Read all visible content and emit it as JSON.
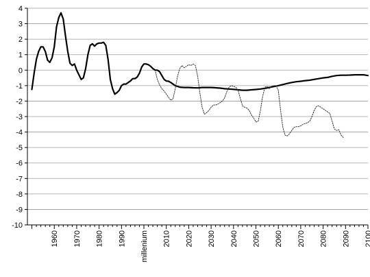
{
  "chart_data": {
    "type": "line",
    "title": "",
    "xlabel": "",
    "ylabel": "",
    "ylim": [
      -10,
      4
    ],
    "xlim": [
      1948,
      2100
    ],
    "grid": "horizontal",
    "legend": "none",
    "y_ticks": [
      "4",
      "3",
      "2",
      "1",
      "0",
      "-1",
      "-2",
      "-3",
      "-4",
      "-5",
      "-6",
      "-7",
      "-8",
      "-9",
      "-10"
    ],
    "x_ticks": [
      {
        "x": 1960,
        "label": "1960"
      },
      {
        "x": 1970,
        "label": "1970"
      },
      {
        "x": 1980,
        "label": "1980"
      },
      {
        "x": 1990,
        "label": "1990"
      },
      {
        "x": 2000,
        "label": "millenium"
      },
      {
        "x": 2010,
        "label": "2010"
      },
      {
        "x": 2020,
        "label": "2020"
      },
      {
        "x": 2030,
        "label": "2030"
      },
      {
        "x": 2040,
        "label": "2040"
      },
      {
        "x": 2050,
        "label": "2050"
      },
      {
        "x": 2060,
        "label": "2060"
      },
      {
        "x": 2070,
        "label": "2070"
      },
      {
        "x": 2080,
        "label": "2080"
      },
      {
        "x": 2090,
        "label": "2090"
      },
      {
        "x": 2100,
        "label": "2100"
      }
    ],
    "series": [
      {
        "style": "solid-thick",
        "color": "#000000",
        "points": [
          [
            1950,
            -1.25
          ],
          [
            1951,
            -0.2
          ],
          [
            1952,
            0.7
          ],
          [
            1953,
            1.2
          ],
          [
            1954,
            1.5
          ],
          [
            1955,
            1.5
          ],
          [
            1956,
            1.2
          ],
          [
            1957,
            0.65
          ],
          [
            1958,
            0.5
          ],
          [
            1959,
            0.8
          ],
          [
            1960,
            1.5
          ],
          [
            1961,
            2.8
          ],
          [
            1962,
            3.4
          ],
          [
            1963,
            3.7
          ],
          [
            1964,
            3.3
          ],
          [
            1965,
            2.2
          ],
          [
            1966,
            1.2
          ],
          [
            1967,
            0.45
          ],
          [
            1968,
            0.3
          ],
          [
            1969,
            0.4
          ],
          [
            1970,
            0.0
          ],
          [
            1971,
            -0.3
          ],
          [
            1972,
            -0.6
          ],
          [
            1973,
            -0.5
          ],
          [
            1974,
            0.1
          ],
          [
            1975,
            1.0
          ],
          [
            1976,
            1.6
          ],
          [
            1977,
            1.7
          ],
          [
            1978,
            1.55
          ],
          [
            1979,
            1.7
          ],
          [
            1980,
            1.75
          ],
          [
            1981,
            1.75
          ],
          [
            1982,
            1.8
          ],
          [
            1983,
            1.6
          ],
          [
            1984,
            0.7
          ],
          [
            1985,
            -0.6
          ],
          [
            1986,
            -1.2
          ],
          [
            1987,
            -1.55
          ],
          [
            1988,
            -1.45
          ],
          [
            1989,
            -1.3
          ],
          [
            1990,
            -1.0
          ],
          [
            1991,
            -0.9
          ],
          [
            1992,
            -0.9
          ],
          [
            1993,
            -0.8
          ],
          [
            1994,
            -0.7
          ],
          [
            1995,
            -0.55
          ],
          [
            1996,
            -0.55
          ],
          [
            1997,
            -0.45
          ],
          [
            1998,
            -0.2
          ],
          [
            1999,
            0.2
          ],
          [
            2000,
            0.4
          ],
          [
            2001,
            0.4
          ],
          [
            2002,
            0.35
          ],
          [
            2003,
            0.25
          ],
          [
            2004,
            0.1
          ],
          [
            2005,
            0.0
          ],
          [
            2006,
            0.0
          ],
          [
            2007,
            -0.1
          ],
          [
            2008,
            -0.35
          ],
          [
            2009,
            -0.6
          ],
          [
            2010,
            -0.7
          ],
          [
            2011,
            -0.72
          ],
          [
            2012,
            -0.8
          ],
          [
            2013,
            -0.9
          ],
          [
            2014,
            -1.0
          ],
          [
            2015,
            -1.05
          ],
          [
            2016,
            -1.1
          ],
          [
            2018,
            -1.12
          ],
          [
            2020,
            -1.12
          ],
          [
            2022,
            -1.14
          ],
          [
            2024,
            -1.15
          ],
          [
            2026,
            -1.12
          ],
          [
            2028,
            -1.12
          ],
          [
            2030,
            -1.12
          ],
          [
            2032,
            -1.14
          ],
          [
            2034,
            -1.16
          ],
          [
            2036,
            -1.2
          ],
          [
            2038,
            -1.22
          ],
          [
            2040,
            -1.24
          ],
          [
            2042,
            -1.27
          ],
          [
            2044,
            -1.3
          ],
          [
            2046,
            -1.3
          ],
          [
            2048,
            -1.27
          ],
          [
            2050,
            -1.25
          ],
          [
            2052,
            -1.22
          ],
          [
            2054,
            -1.18
          ],
          [
            2056,
            -1.12
          ],
          [
            2058,
            -1.06
          ],
          [
            2060,
            -1.0
          ],
          [
            2062,
            -0.93
          ],
          [
            2064,
            -0.86
          ],
          [
            2066,
            -0.8
          ],
          [
            2068,
            -0.75
          ],
          [
            2070,
            -0.72
          ],
          [
            2072,
            -0.68
          ],
          [
            2074,
            -0.65
          ],
          [
            2076,
            -0.6
          ],
          [
            2078,
            -0.55
          ],
          [
            2080,
            -0.5
          ],
          [
            2082,
            -0.47
          ],
          [
            2084,
            -0.4
          ],
          [
            2086,
            -0.35
          ],
          [
            2088,
            -0.33
          ],
          [
            2090,
            -0.33
          ],
          [
            2092,
            -0.32
          ],
          [
            2094,
            -0.3
          ],
          [
            2096,
            -0.3
          ],
          [
            2098,
            -0.3
          ],
          [
            2100,
            -0.35
          ]
        ]
      },
      {
        "style": "dotted-thin",
        "color": "#333333",
        "points": [
          [
            2005,
            0.0
          ],
          [
            2006,
            -0.6
          ],
          [
            2007,
            -0.95
          ],
          [
            2008,
            -1.2
          ],
          [
            2009,
            -1.35
          ],
          [
            2010,
            -1.55
          ],
          [
            2011,
            -1.75
          ],
          [
            2012,
            -1.95
          ],
          [
            2013,
            -1.85
          ],
          [
            2014,
            -1.2
          ],
          [
            2015,
            -0.4
          ],
          [
            2016,
            0.1
          ],
          [
            2017,
            0.3
          ],
          [
            2018,
            0.15
          ],
          [
            2019,
            0.25
          ],
          [
            2020,
            0.35
          ],
          [
            2021,
            0.3
          ],
          [
            2022,
            0.4
          ],
          [
            2023,
            0.3
          ],
          [
            2024,
            -0.4
          ],
          [
            2025,
            -1.5
          ],
          [
            2026,
            -2.4
          ],
          [
            2027,
            -2.85
          ],
          [
            2028,
            -2.75
          ],
          [
            2029,
            -2.6
          ],
          [
            2030,
            -2.4
          ],
          [
            2031,
            -2.25
          ],
          [
            2032,
            -2.25
          ],
          [
            2033,
            -2.2
          ],
          [
            2034,
            -2.1
          ],
          [
            2035,
            -2.0
          ],
          [
            2036,
            -1.8
          ],
          [
            2037,
            -1.4
          ],
          [
            2038,
            -1.1
          ],
          [
            2039,
            -1.0
          ],
          [
            2040,
            -1.05
          ],
          [
            2041,
            -1.1
          ],
          [
            2042,
            -1.3
          ],
          [
            2043,
            -1.8
          ],
          [
            2044,
            -2.3
          ],
          [
            2045,
            -2.4
          ],
          [
            2046,
            -2.45
          ],
          [
            2047,
            -2.6
          ],
          [
            2048,
            -2.9
          ],
          [
            2049,
            -3.1
          ],
          [
            2050,
            -3.35
          ],
          [
            2051,
            -3.3
          ],
          [
            2052,
            -2.6
          ],
          [
            2053,
            -1.7
          ],
          [
            2054,
            -1.1
          ],
          [
            2055,
            -1.05
          ],
          [
            2056,
            -1.2
          ],
          [
            2057,
            -1.05
          ],
          [
            2058,
            -1.0
          ],
          [
            2059,
            -1.0
          ],
          [
            2060,
            -1.3
          ],
          [
            2061,
            -2.6
          ],
          [
            2062,
            -3.7
          ],
          [
            2063,
            -4.2
          ],
          [
            2064,
            -4.25
          ],
          [
            2065,
            -4.1
          ],
          [
            2066,
            -3.9
          ],
          [
            2067,
            -3.7
          ],
          [
            2068,
            -3.65
          ],
          [
            2069,
            -3.65
          ],
          [
            2070,
            -3.6
          ],
          [
            2071,
            -3.5
          ],
          [
            2072,
            -3.45
          ],
          [
            2073,
            -3.4
          ],
          [
            2074,
            -3.3
          ],
          [
            2075,
            -3.0
          ],
          [
            2076,
            -2.6
          ],
          [
            2077,
            -2.35
          ],
          [
            2078,
            -2.3
          ],
          [
            2079,
            -2.4
          ],
          [
            2080,
            -2.5
          ],
          [
            2081,
            -2.6
          ],
          [
            2082,
            -2.7
          ],
          [
            2083,
            -2.8
          ],
          [
            2084,
            -3.3
          ],
          [
            2085,
            -3.8
          ],
          [
            2086,
            -3.9
          ],
          [
            2087,
            -3.85
          ],
          [
            2088,
            -4.2
          ],
          [
            2089,
            -4.35
          ]
        ]
      }
    ]
  }
}
